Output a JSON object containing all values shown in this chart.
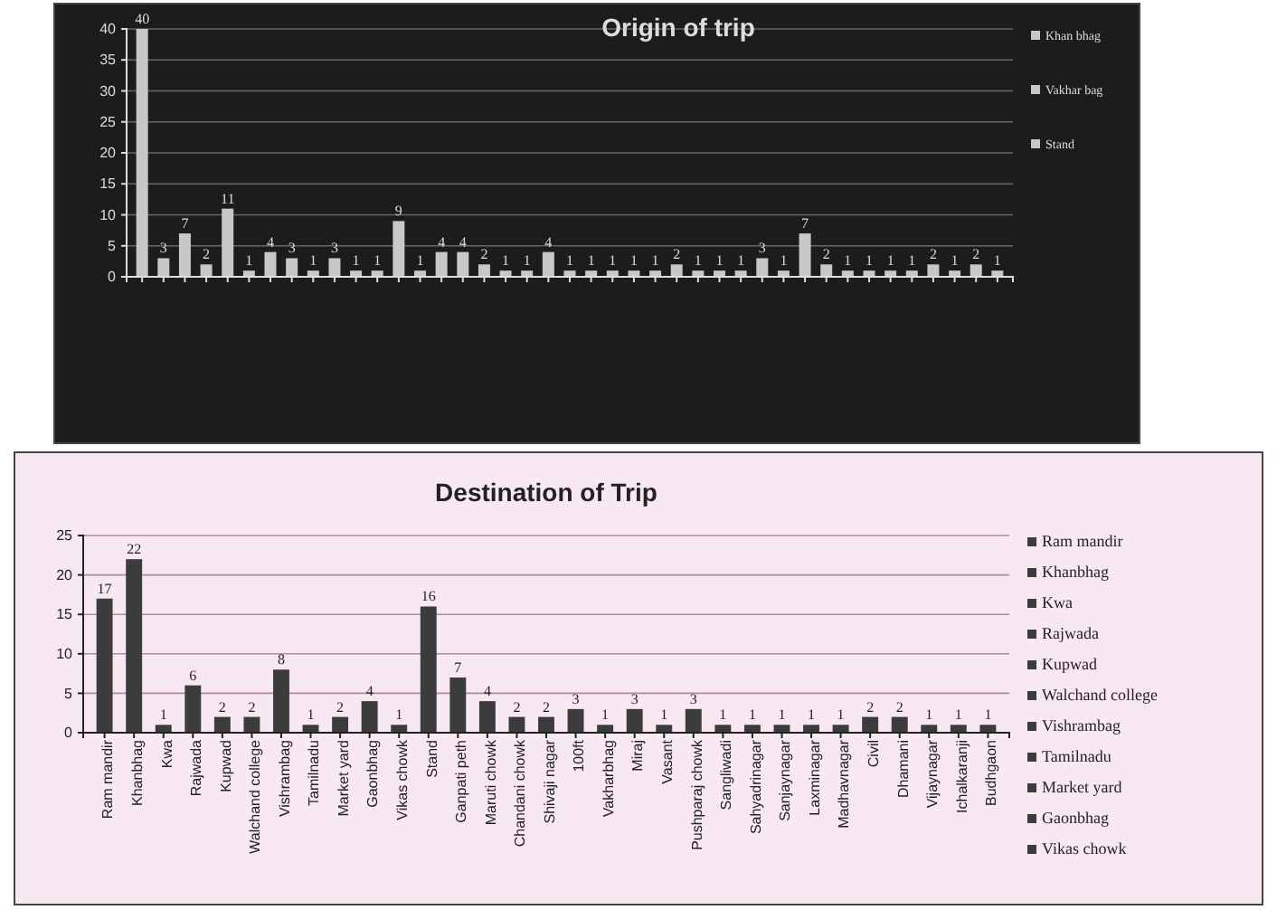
{
  "chart_data": [
    {
      "type": "bar",
      "title": "Origin of trip",
      "categories": [
        null,
        null,
        null,
        null,
        null,
        null,
        null,
        null,
        null,
        null,
        null,
        null,
        null,
        null,
        null,
        null,
        null,
        null,
        null,
        null,
        null,
        null,
        null,
        null,
        null,
        null,
        null,
        null,
        null,
        null,
        null,
        null,
        null,
        null,
        null,
        null,
        null,
        null,
        null,
        null,
        null
      ],
      "values": [
        40,
        3,
        7,
        2,
        11,
        1,
        4,
        3,
        1,
        3,
        1,
        1,
        9,
        1,
        4,
        4,
        2,
        1,
        1,
        4,
        1,
        1,
        1,
        1,
        1,
        2,
        1,
        1,
        1,
        3,
        1,
        7,
        2,
        1,
        1,
        1,
        1,
        2,
        1,
        2,
        1
      ],
      "color": "#c8c8c8",
      "ylim": [
        0,
        40
      ],
      "yticks": [
        0,
        5,
        10,
        15,
        20,
        25,
        30,
        35,
        40
      ],
      "grid": "y",
      "data_labels": true,
      "annotations": [
        "Khan bhag",
        "Vakhar bag",
        "Stand"
      ]
    },
    {
      "type": "bar",
      "title": "Destination of Trip",
      "categories": [
        "Ram mandir",
        "Khanbhag",
        "Kwa",
        "Rajwada",
        "Kupwad",
        "Walchand college",
        "Vishrambag",
        "Tamilnadu",
        "Market yard",
        "Gaonbhag",
        "Vikas chowk",
        "Stand",
        "Ganpati peth",
        "Maruti chowk",
        "Chandani chowk",
        "Shivaji nagar",
        "100ft",
        "Vakharbhag",
        "Miraj",
        "Vasant",
        "Pushparaj chowk",
        "Sangliwadi",
        "Sahyadrinagar",
        "Sanjaynagar",
        "Laxminagar",
        "Madhavnagar",
        "Civil",
        "Dhamani",
        "Vijaynagar",
        "Ichalkaranji",
        "Budhgaon"
      ],
      "values": [
        17,
        22,
        1,
        6,
        2,
        2,
        8,
        1,
        2,
        4,
        1,
        16,
        7,
        4,
        2,
        2,
        3,
        1,
        3,
        1,
        3,
        1,
        1,
        1,
        1,
        1,
        2,
        2,
        1,
        1,
        1
      ],
      "color": "#3c3c3c",
      "ylim": [
        0,
        25
      ],
      "yticks": [
        0,
        5,
        10,
        15,
        20,
        25
      ],
      "grid": "y",
      "data_labels": true,
      "annotations": [
        "Ram mandir",
        "Khanbhag",
        "Kwa",
        "Rajwada",
        "Kupwad",
        "Walchand college",
        "Vishrambag",
        "Tamilnadu",
        "Market yard",
        "Gaonbhag",
        "Vikas chowk"
      ]
    }
  ]
}
